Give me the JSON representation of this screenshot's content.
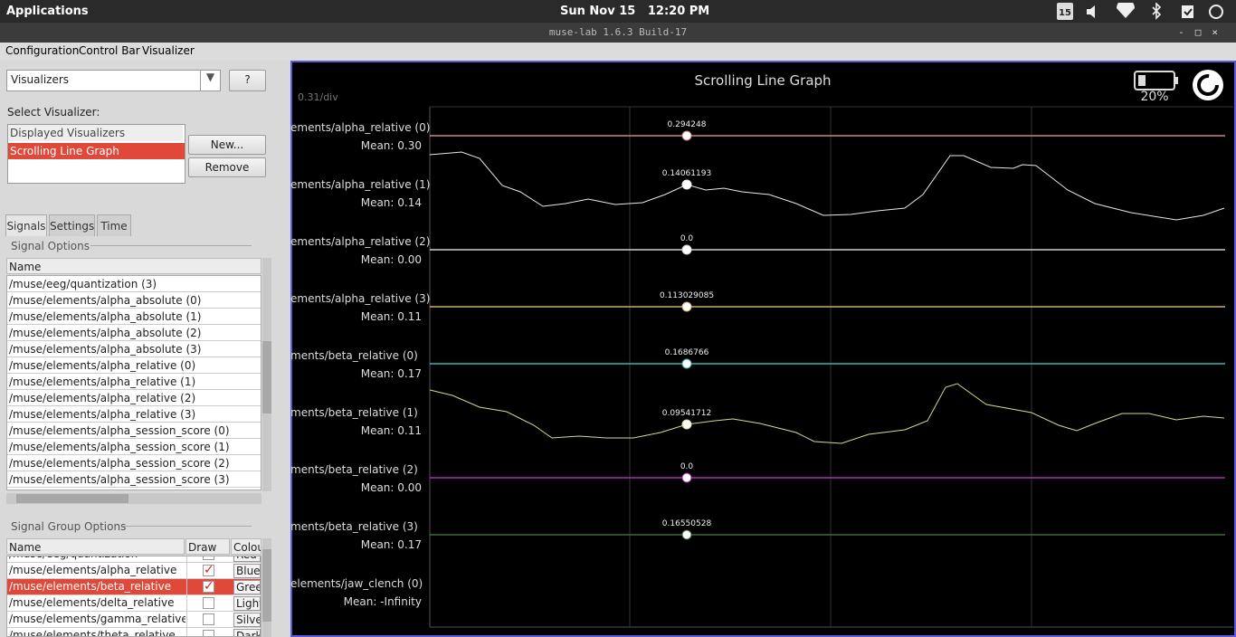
{
  "topbar": {
    "applications": "Applications",
    "clock": "Sun Nov 15   12:20 PM",
    "calendar_day": "15"
  },
  "window": {
    "title": "muse-lab 1.6.3 Build-17"
  },
  "menu": [
    "Configuration",
    "Control Bar",
    "Visualizer"
  ],
  "sidebar": {
    "combo": "Visualizers",
    "help_button": "?",
    "select_label": "Select Visualizer:",
    "visualizer_list": {
      "header": "Displayed Visualizers",
      "items": [
        "Scrolling Line Graph"
      ]
    },
    "new_button": "New...",
    "remove_button": "Remove",
    "tabs": [
      "Signals",
      "Settings",
      "Time"
    ],
    "signal_options": {
      "title": "Signal Options",
      "header": "Name",
      "rows": [
        "/muse/eeg/quantization (3)",
        "/muse/elements/alpha_absolute (0)",
        "/muse/elements/alpha_absolute (1)",
        "/muse/elements/alpha_absolute (2)",
        "/muse/elements/alpha_absolute (3)",
        "/muse/elements/alpha_relative (0)",
        "/muse/elements/alpha_relative (1)",
        "/muse/elements/alpha_relative (2)",
        "/muse/elements/alpha_relative (3)",
        "/muse/elements/alpha_session_score (0)",
        "/muse/elements/alpha_session_score (1)",
        "/muse/elements/alpha_session_score (2)",
        "/muse/elements/alpha_session_score (3)"
      ]
    },
    "signal_group_options": {
      "title": "Signal Group Options",
      "headers": [
        "Name",
        "Draw",
        "Colou"
      ],
      "rows": [
        [
          "/muse/eeg/quantization",
          "Red"
        ],
        [
          "/muse/elements/alpha_relative",
          "Blue"
        ],
        [
          "/muse/elements/beta_relative",
          "Gree"
        ],
        [
          "/muse/elements/delta_relative",
          "Light"
        ],
        [
          "/muse/elements/gamma_relative",
          "Silver"
        ],
        [
          "/muse/elements/theta_relative",
          "Dark"
        ]
      ]
    }
  },
  "graph": {
    "title": "Scrolling Line Graph",
    "scale": "0.31/div",
    "battery": "20%",
    "channels": [
      {
        "name": "ements/alpha_relative (0)",
        "mean": "Mean: 0.30",
        "value": "0.294248",
        "color": "#c48a84"
      },
      {
        "name": "ements/alpha_relative (1)",
        "mean": "Mean: 0.14",
        "value": "0.14061193",
        "color": "#e8e8e8"
      },
      {
        "name": "ements/alpha_relative (2)",
        "mean": "Mean: 0.00",
        "value": "0.0",
        "color": "#d0d0d0"
      },
      {
        "name": "ements/alpha_relative (3)",
        "mean": "Mean: 0.11",
        "value": "0.113029085",
        "color": "#c8b06c"
      },
      {
        "name": "ments/beta_relative (0)",
        "mean": "Mean: 0.17",
        "value": "0.1686766",
        "color": "#38b4b4"
      },
      {
        "name": "ments/beta_relative (1)",
        "mean": "Mean: 0.11",
        "value": "0.09541712",
        "color": "#d8d88c"
      },
      {
        "name": "ments/beta_relative (2)",
        "mean": "Mean: 0.00",
        "value": "0.0",
        "color": "#b02cb0"
      },
      {
        "name": "ments/beta_relative (3)",
        "mean": "Mean: 0.17",
        "value": "0.16550528",
        "color": "#3c6a3c"
      },
      {
        "name": "elements/jaw_clench (0)",
        "mean": "Mean: -Infinity"
      }
    ]
  }
}
